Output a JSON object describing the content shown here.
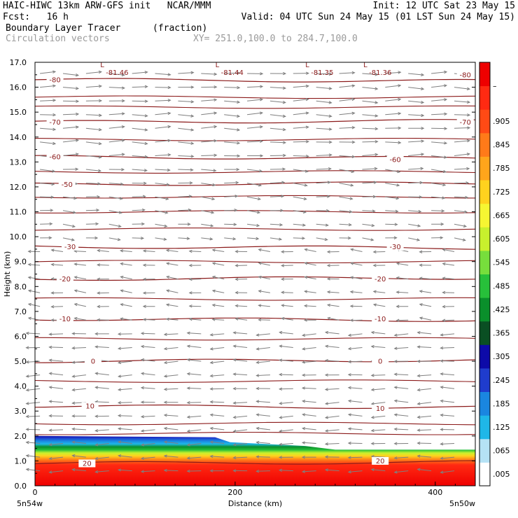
{
  "header": {
    "line1_left": "HAIC-HIWC 13km ARW-GFS init   NCAR/MMM",
    "line1_right": "Init: 12 UTC Sat 23 May 15",
    "line2_left": "Fcst:   16 h",
    "line2_right": "Valid: 04 UTC Sun 24 May 15 (01 LST Sun 24 May 15)",
    "line3_left": "Boundary Layer Tracer",
    "line3_mid": "(fraction)",
    "line4_left": "Circulation vectors",
    "line4_mid": "XY= 251.0,100.0 to 284.7,100.0"
  },
  "colors": {
    "contour": "#8b1a1a",
    "vector": "#7f7f7f",
    "scale": [
      "#ffffff",
      "#b5e2f5",
      "#1fb7e8",
      "#1a86e0",
      "#1f3ccd",
      "#0d0aa8",
      "#0a4f23",
      "#0a8f2b",
      "#27c03a",
      "#77de3c",
      "#c8f02d",
      "#f6f632",
      "#ffd21e",
      "#ffa51b",
      "#ff7a19",
      "#ff4a15",
      "#ff2a12",
      "#ee0000"
    ]
  },
  "chart_data": {
    "type": "heatmap",
    "title": "Boundary Layer Tracer",
    "units": "(fraction)",
    "xlabel": "Distance (km)",
    "ylabel": "Height (km)",
    "xlim": [
      0,
      440
    ],
    "ylim": [
      0,
      17
    ],
    "x_ticks": [
      "0",
      "200",
      "400"
    ],
    "y_ticks": [
      "0.0",
      "1.0",
      "2.0",
      "3.0",
      "4.0",
      "5.0",
      "6.0",
      "7.0",
      "8.0",
      "9.0",
      "10.0",
      "11.0",
      "12.0",
      "13.0",
      "14.0",
      "15.0",
      "16.0",
      "17.0"
    ],
    "x_endpoints": [
      "5n54w",
      "5n50w"
    ],
    "colorbar_labels": [
      ".005",
      ".065",
      ".125",
      ".185",
      ".245",
      ".305",
      ".365",
      ".425",
      ".485",
      ".545",
      ".605",
      ".665",
      ".725",
      ".785",
      ".845",
      ".905",
      "–"
    ],
    "tracer_top_km": [
      {
        "x": 0,
        "z": 2.0
      },
      {
        "x": 180,
        "z": 1.95
      },
      {
        "x": 195,
        "z": 1.75
      },
      {
        "x": 270,
        "z": 1.6
      },
      {
        "x": 300,
        "z": 1.45
      },
      {
        "x": 440,
        "z": 1.45
      }
    ],
    "contours": [
      {
        "label": "-80",
        "z": 16.3
      },
      {
        "label": "-70",
        "z": 14.6
      },
      {
        "label": "-60",
        "z": 13.2
      },
      {
        "label": "-50",
        "z": 12.1
      },
      {
        "label": "-30",
        "z": 9.6
      },
      {
        "label": "-20",
        "z": 8.3
      },
      {
        "label": "-10",
        "z": 6.7
      },
      {
        "label": "0",
        "z": 5.0
      },
      {
        "label": "10",
        "z": 3.2
      },
      {
        "label": "20",
        "z": 0.9
      }
    ],
    "contour_label_positions": [
      {
        "label": "-80",
        "x": 20,
        "z": 16.3
      },
      {
        "label": "-80",
        "x": 430,
        "z": 16.5
      },
      {
        "label": "-70",
        "x": 20,
        "z": 14.6
      },
      {
        "label": "-70",
        "x": 430,
        "z": 14.6
      },
      {
        "label": "-60",
        "x": 20,
        "z": 13.2
      },
      {
        "label": "-60",
        "x": 360,
        "z": 13.1
      },
      {
        "label": "-50",
        "x": 32,
        "z": 12.1
      },
      {
        "label": "-30",
        "x": 35,
        "z": 9.6
      },
      {
        "label": "-30",
        "x": 360,
        "z": 9.6
      },
      {
        "label": "-20",
        "x": 30,
        "z": 8.3
      },
      {
        "label": "-20",
        "x": 345,
        "z": 8.3
      },
      {
        "label": "-10",
        "x": 30,
        "z": 6.7
      },
      {
        "label": "-10",
        "x": 345,
        "z": 6.7
      },
      {
        "label": "0",
        "x": 58,
        "z": 5.0
      },
      {
        "label": "0",
        "x": 345,
        "z": 5.0
      },
      {
        "label": "10",
        "x": 55,
        "z": 3.2
      },
      {
        "label": "10",
        "x": 345,
        "z": 3.1
      },
      {
        "label": "20",
        "x": 52,
        "z": 0.9
      },
      {
        "label": "20",
        "x": 345,
        "z": 1.0
      }
    ],
    "lows": [
      {
        "label": "L",
        "value": "-81.46",
        "x": 75,
        "z": 16.8
      },
      {
        "label": "L",
        "value": "-81.44",
        "x": 190,
        "z": 16.8
      },
      {
        "label": "L",
        "value": "-81.35",
        "x": 280,
        "z": 16.8
      },
      {
        "label": "L",
        "value": "-81.36",
        "x": 338,
        "z": 16.8
      }
    ]
  }
}
